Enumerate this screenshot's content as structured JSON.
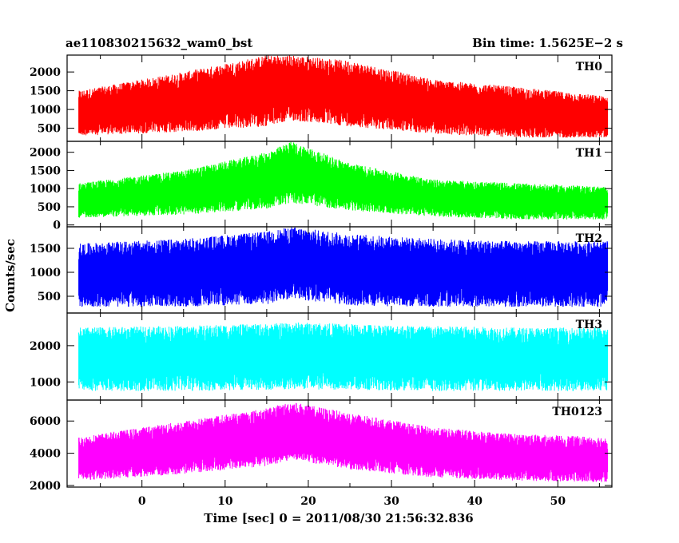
{
  "header": {
    "source_name": "ae110830215632_wam0_bst",
    "bin_time": "Bin time: 1.5625E−2 s"
  },
  "chart_data": {
    "type": "line",
    "ylabel": "Counts/sec",
    "xlabel": "Time [sec] 0 = 2011/08/30 21:56:32.836",
    "xlim": [
      -9,
      56.5
    ],
    "x_ticks": [
      0,
      10,
      20,
      30,
      40,
      50
    ],
    "data_x_range": [
      -7.6,
      56
    ],
    "panels": [
      {
        "name": "TH0",
        "color": "#ff0000",
        "ylim": [
          150,
          2450
        ],
        "y_ticks": [
          500,
          1000,
          1500,
          2000
        ],
        "profile_t": [
          -7.6,
          5,
          15,
          18,
          25,
          35,
          45,
          56
        ],
        "lower_envelope": [
          300,
          400,
          550,
          700,
          550,
          350,
          250,
          250
        ],
        "upper_envelope": [
          1500,
          2000,
          2450,
          2450,
          2300,
          1800,
          1600,
          1350
        ]
      },
      {
        "name": "TH1",
        "color": "#00ff00",
        "ylim": [
          -50,
          2300
        ],
        "y_ticks": [
          0,
          500,
          1000,
          1500,
          2000
        ],
        "profile_t": [
          -7.6,
          5,
          15,
          18,
          25,
          35,
          45,
          56
        ],
        "lower_envelope": [
          200,
          280,
          450,
          600,
          400,
          230,
          150,
          150
        ],
        "upper_envelope": [
          1150,
          1500,
          2000,
          2300,
          1700,
          1250,
          1150,
          1050
        ]
      },
      {
        "name": "TH2",
        "color": "#0000ff",
        "ylim": [
          150,
          1950
        ],
        "y_ticks": [
          500,
          1000,
          1500
        ],
        "profile_t": [
          -7.6,
          5,
          15,
          18,
          25,
          35,
          45,
          56
        ],
        "lower_envelope": [
          280,
          280,
          330,
          450,
          300,
          280,
          280,
          280
        ],
        "upper_envelope": [
          1600,
          1700,
          1850,
          1950,
          1800,
          1700,
          1650,
          1650
        ]
      },
      {
        "name": "TH3",
        "color": "#00ffff",
        "ylim": [
          500,
          2900
        ],
        "y_ticks": [
          1000,
          2000
        ],
        "profile_t": [
          -7.6,
          5,
          15,
          18,
          25,
          35,
          45,
          56
        ],
        "lower_envelope": [
          750,
          750,
          780,
          800,
          780,
          750,
          750,
          750
        ],
        "upper_envelope": [
          2500,
          2550,
          2600,
          2650,
          2600,
          2550,
          2500,
          2500
        ]
      },
      {
        "name": "TH0123",
        "color": "#ff00ff",
        "ylim": [
          1900,
          7300
        ],
        "y_ticks": [
          2000,
          4000,
          6000
        ],
        "profile_t": [
          -7.6,
          5,
          15,
          18,
          25,
          35,
          45,
          56
        ],
        "lower_envelope": [
          2300,
          2700,
          3200,
          3600,
          3000,
          2500,
          2300,
          2200
        ],
        "upper_envelope": [
          5000,
          6000,
          6800,
          7200,
          6500,
          5600,
          5200,
          5000
        ]
      }
    ]
  }
}
